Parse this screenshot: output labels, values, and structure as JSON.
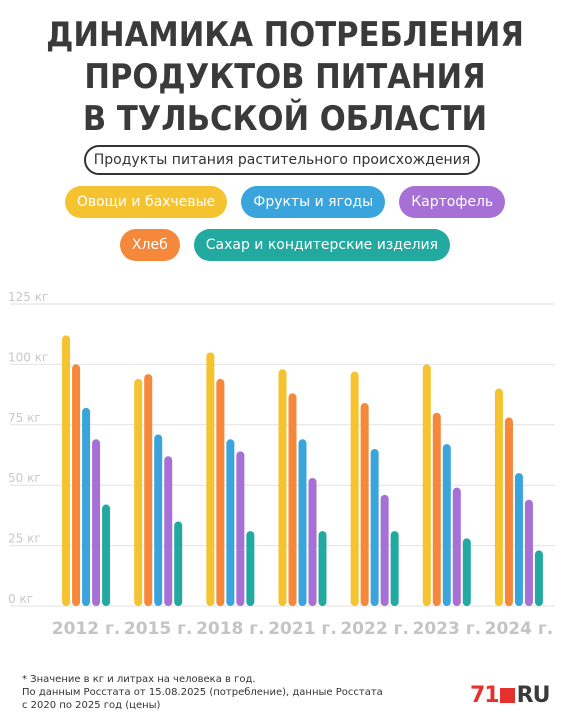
{
  "title_lines": [
    "ДИНАМИКА ПОТРЕБЛЕНИЯ",
    "ПРОДУКТОВ ПИТАНИЯ",
    "В ТУЛЬСКОЙ ОБЛАСТИ"
  ],
  "subtitle": "Продукты питания растительного происхождения",
  "footnote_lines": [
    "* Значение в кг и литрах на человека в год.",
    "По данным Росстата от 15.08.2025 (потребление), данные Росстата",
    "с 2020 по 2025 год (цены)"
  ],
  "logo": {
    "number": "71",
    "suffix": "RU"
  },
  "colors": {
    "vegetables": "#f5c330",
    "fruits": "#3aa5dc",
    "potato": "#a670d6",
    "bread": "#f5883a",
    "sugar": "#23aaa0",
    "title": "#3a3a3a"
  },
  "chart_data": {
    "type": "bar",
    "categories": [
      "2012 г.",
      "2015 г.",
      "2018 г.",
      "2021 г.",
      "2022 г.",
      "2023 г.",
      "2024 г."
    ],
    "y_ticks": [
      "0 кг",
      "25 кг",
      "50 кг",
      "75 кг",
      "100 кг",
      "125 кг"
    ],
    "ylim": [
      0,
      125
    ],
    "grid": true,
    "legend_position": "top",
    "series": [
      {
        "name": "Овощи и бахчевые",
        "color": "#f5c330",
        "values": [
          112,
          94,
          105,
          98,
          97,
          100,
          90
        ]
      },
      {
        "name": "Хлеб",
        "color": "#f5883a",
        "values": [
          100,
          96,
          94,
          88,
          84,
          80,
          78
        ]
      },
      {
        "name": "Фрукты и ягоды",
        "color": "#3aa5dc",
        "values": [
          82,
          71,
          69,
          69,
          65,
          67,
          55
        ]
      },
      {
        "name": "Картофель",
        "color": "#a670d6",
        "values": [
          69,
          62,
          64,
          53,
          46,
          49,
          44
        ]
      },
      {
        "name": "Сахар и кондитерские изделия",
        "color": "#23aaa0",
        "values": [
          42,
          35,
          31,
          31,
          31,
          28,
          23
        ]
      }
    ],
    "legend_rows": [
      [
        "Овощи и бахчевые",
        "Фрукты и ягоды",
        "Картофель"
      ],
      [
        "Хлеб",
        "Сахар и кондитерские изделия"
      ]
    ]
  }
}
